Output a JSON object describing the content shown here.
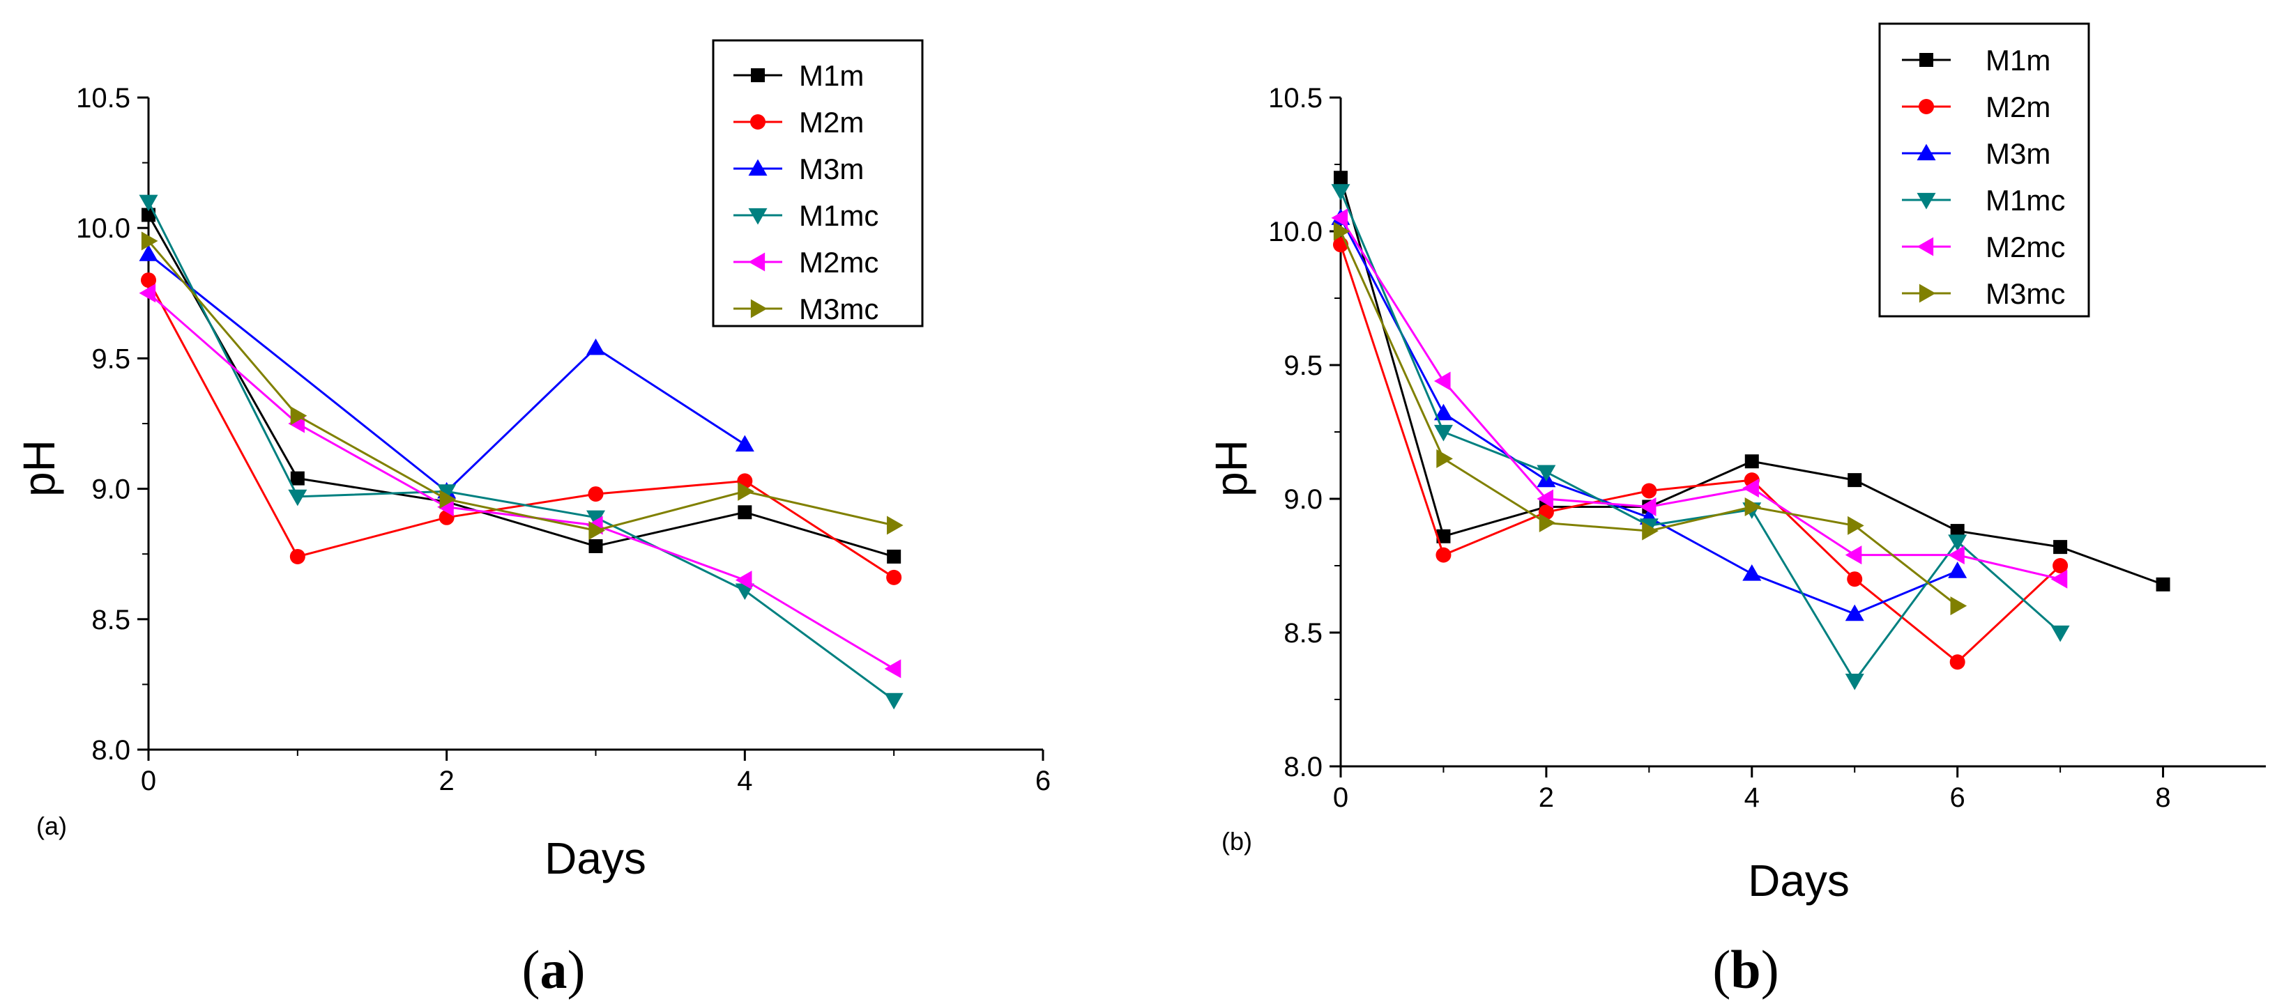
{
  "chart_data": [
    {
      "type": "line",
      "panel_label": "(a)",
      "caption_open": "(",
      "caption_letter": "a",
      "caption_close": ")",
      "xlabel": "Days",
      "ylabel": "pH",
      "xlim": [
        0,
        6
      ],
      "ylim": [
        8.0,
        10.5
      ],
      "xticks": [
        0,
        2,
        4,
        6
      ],
      "yticks": [
        8.0,
        8.5,
        9.0,
        9.5,
        10.0,
        10.5
      ],
      "ytick_labels": [
        "8.0",
        "8.5",
        "9.0",
        "9.5",
        "10.0",
        "10.5"
      ],
      "grid": false,
      "legend_position": "top-right",
      "series": [
        {
          "name": "M1m",
          "color": "#000000",
          "marker": "square",
          "x": [
            0,
            1,
            2,
            3,
            4,
            5
          ],
          "y": [
            10.05,
            9.04,
            8.95,
            8.78,
            8.91,
            8.74
          ]
        },
        {
          "name": "M2m",
          "color": "#ff0000",
          "marker": "circle",
          "x": [
            0,
            1,
            2,
            3,
            4,
            5
          ],
          "y": [
            9.8,
            8.74,
            8.89,
            8.98,
            9.03,
            8.66
          ]
        },
        {
          "name": "M3m",
          "color": "#0000ff",
          "marker": "triangle-up",
          "x": [
            0,
            2,
            3,
            4
          ],
          "y": [
            9.9,
            8.99,
            9.54,
            9.17
          ]
        },
        {
          "name": "M1mc",
          "color": "#008080",
          "marker": "triangle-down",
          "x": [
            0,
            1,
            2,
            3,
            4,
            5
          ],
          "y": [
            10.1,
            8.97,
            8.99,
            8.89,
            8.61,
            8.19
          ]
        },
        {
          "name": "M2mc",
          "color": "#ff00ff",
          "marker": "triangle-left",
          "x": [
            0,
            1,
            2,
            3,
            4,
            5
          ],
          "y": [
            9.75,
            9.25,
            8.93,
            8.86,
            8.65,
            8.31
          ]
        },
        {
          "name": "M3mc",
          "color": "#808000",
          "marker": "triangle-right",
          "x": [
            0,
            1,
            2,
            3,
            4,
            5
          ],
          "y": [
            9.95,
            9.28,
            8.96,
            8.84,
            8.99,
            8.86
          ]
        }
      ]
    },
    {
      "type": "line",
      "panel_label": "(b)",
      "caption_open": "(",
      "caption_letter": "b",
      "caption_close": ")",
      "xlabel": "Days",
      "ylabel": "pH",
      "xlim": [
        0,
        9
      ],
      "ylim": [
        8.0,
        10.5
      ],
      "xticks": [
        0,
        2,
        4,
        6,
        8
      ],
      "yticks": [
        8.0,
        8.5,
        9.0,
        9.5,
        10.0,
        10.5
      ],
      "ytick_labels": [
        "8.0",
        "8.5",
        "9.0",
        "9.5",
        "10.0",
        "10.5"
      ],
      "grid": false,
      "legend_position": "top-right",
      "series": [
        {
          "name": "M1m",
          "color": "#000000",
          "marker": "square",
          "x": [
            0,
            1,
            2,
            3,
            4,
            5,
            6,
            7,
            8
          ],
          "y": [
            10.2,
            8.86,
            8.97,
            8.97,
            9.14,
            9.07,
            8.88,
            8.82,
            8.68
          ]
        },
        {
          "name": "M2m",
          "color": "#ff0000",
          "marker": "circle",
          "x": [
            0,
            1,
            2,
            3,
            4,
            5,
            6,
            7
          ],
          "y": [
            9.95,
            8.79,
            8.95,
            9.03,
            9.07,
            8.7,
            8.39,
            8.75
          ]
        },
        {
          "name": "M3m",
          "color": "#0000ff",
          "marker": "triangle-up",
          "x": [
            0,
            1,
            2,
            3,
            4,
            5,
            6
          ],
          "y": [
            10.05,
            9.32,
            9.07,
            8.93,
            8.72,
            8.57,
            8.73
          ]
        },
        {
          "name": "M1mc",
          "color": "#008080",
          "marker": "triangle-down",
          "x": [
            0,
            1,
            2,
            3,
            4,
            5,
            6,
            7
          ],
          "y": [
            10.15,
            9.25,
            9.1,
            8.9,
            8.96,
            8.32,
            8.84,
            8.5
          ]
        },
        {
          "name": "M2mc",
          "color": "#ff00ff",
          "marker": "triangle-left",
          "x": [
            0,
            1,
            2,
            3,
            4,
            5,
            6,
            7
          ],
          "y": [
            10.05,
            9.44,
            9.0,
            8.97,
            9.04,
            8.79,
            8.79,
            8.7
          ]
        },
        {
          "name": "M3mc",
          "color": "#808000",
          "marker": "triangle-right",
          "x": [
            0,
            1,
            2,
            3,
            4,
            5,
            6
          ],
          "y": [
            10.0,
            9.15,
            8.91,
            8.88,
            8.97,
            8.9,
            8.6
          ]
        }
      ]
    }
  ]
}
